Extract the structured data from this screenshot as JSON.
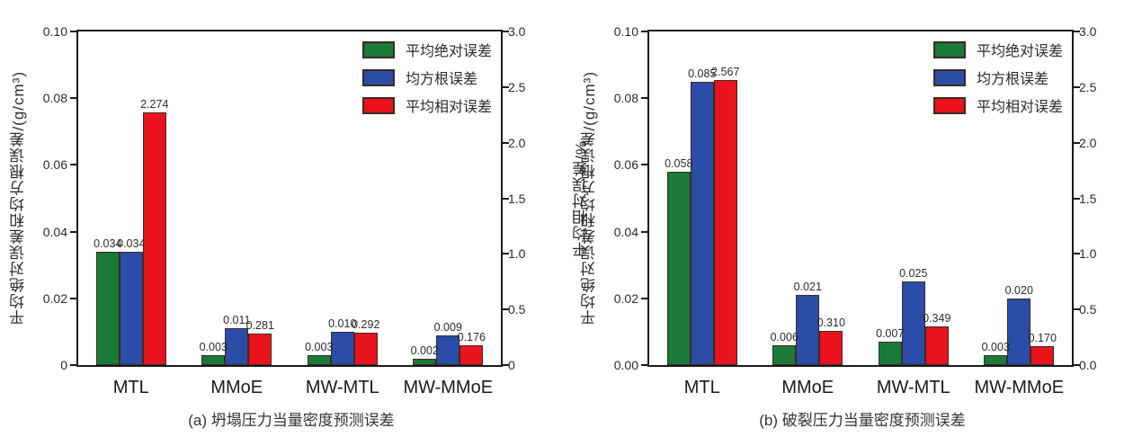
{
  "figure": {
    "background": "#ffffff",
    "axis_color": "#1a1a1a",
    "bar_outline_color": "#3b2a22",
    "text_color": "#2b2b2b"
  },
  "chart_data": [
    {
      "type": "bar",
      "panel": "a",
      "caption": "(a) 坍塌压力当量密度预测误差",
      "categories": [
        "MTL",
        "MMoE",
        "MW-MTL",
        "MW-MMoE"
      ],
      "series": [
        {
          "key": "mean-absolute-error",
          "name": "平均绝对误差",
          "color": "#1a7a39",
          "axis": "left",
          "values": [
            0.034,
            0.003,
            0.003,
            0.002
          ],
          "labels": [
            "0.034",
            "0.003",
            "0.003",
            "0.002"
          ]
        },
        {
          "key": "root-mean-square-error",
          "name": "均方根误差",
          "color": "#2b4da8",
          "axis": "left",
          "values": [
            0.034,
            0.011,
            0.01,
            0.009
          ],
          "labels": [
            "0.034",
            "0.011",
            "0.010",
            "0.009"
          ]
        },
        {
          "key": "mean-relative-error",
          "name": "平均相对误差",
          "color": "#e8131d",
          "axis": "right",
          "values": [
            2.274,
            0.281,
            0.292,
            0.176
          ],
          "labels": [
            "2.274",
            "0.281",
            "0.292",
            "0.176"
          ]
        }
      ],
      "left_axis": {
        "label": "平均绝对误差和均方根误差/(g/cm³)",
        "max": 0.1,
        "ticks": [
          "0.10",
          "0.08",
          "0.06",
          "0.04",
          "0.02",
          "0"
        ]
      },
      "right_axis": {
        "label": "平均相对误差/%",
        "max": 3.0,
        "ticks": [
          "3.0",
          "2.5",
          "2.0",
          "1.5",
          "1.0",
          "0.5",
          "0"
        ]
      },
      "legend_position": "top-right",
      "grid": false
    },
    {
      "type": "bar",
      "panel": "b",
      "caption": "(b) 破裂压力当量密度预测误差",
      "categories": [
        "MTL",
        "MMoE",
        "MW-MTL",
        "MW-MMoE"
      ],
      "series": [
        {
          "key": "mean-absolute-error",
          "name": "平均绝对误差",
          "color": "#1a7a39",
          "axis": "left",
          "values": [
            0.058,
            0.006,
            0.007,
            0.003
          ],
          "labels": [
            "0.058",
            "0.006",
            "0.007",
            "0.003"
          ]
        },
        {
          "key": "root-mean-square-error",
          "name": "均方根误差",
          "color": "#2b4da8",
          "axis": "left",
          "values": [
            0.085,
            0.021,
            0.025,
            0.02
          ],
          "labels": [
            "0.085",
            "0.021",
            "0.025",
            "0.020"
          ]
        },
        {
          "key": "mean-relative-error",
          "name": "平均相对误差",
          "color": "#e8131d",
          "axis": "right",
          "values": [
            2.567,
            0.31,
            0.349,
            0.17
          ],
          "labels": [
            "2.567",
            "0.310",
            "0.349",
            "0.170"
          ]
        }
      ],
      "left_axis": {
        "label": "平均绝对误差和均方根误差/(g/cm³)",
        "max": 0.1,
        "ticks": [
          "0.10",
          "0.08",
          "0.06",
          "0.04",
          "0.02",
          "0.00"
        ]
      },
      "right_axis": {
        "label": "平均相对误差/%",
        "max": 3.0,
        "ticks": [
          "3.0",
          "2.5",
          "2.0",
          "1.5",
          "1.0",
          "0.5",
          "0.0"
        ]
      },
      "legend_position": "top-right",
      "grid": false
    }
  ]
}
